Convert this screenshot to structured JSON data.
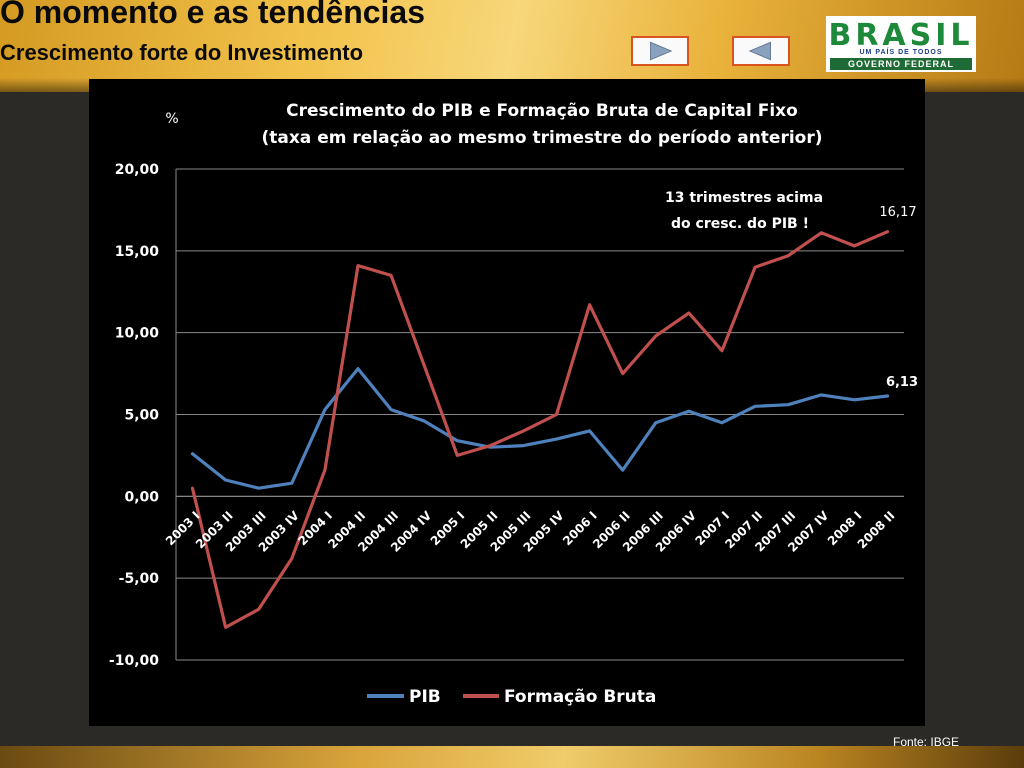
{
  "header": {
    "title": "O momento e as tendências",
    "subtitle": "Crescimento forte do Investimento"
  },
  "navigation": {
    "next_icon": "play-right-icon",
    "prev_icon": "play-left-icon"
  },
  "logo": {
    "word": "BRASIL",
    "tagline": "UM PAÍS DE TODOS",
    "government": "GOVERNO FEDERAL"
  },
  "colors": {
    "pib": "#4f81bd",
    "fbcf": "#c0504d",
    "nav_border": "#d9541e"
  },
  "chart_data": {
    "type": "line",
    "title_line1": "Crescimento do PIB e Formação Bruta de Capital Fixo",
    "title_line2": "(taxa em relação ao mesmo trimestre do período anterior)",
    "ylabel": "%",
    "ylim": [
      -10,
      20
    ],
    "yticks": [
      20,
      15,
      10,
      5,
      0,
      -5,
      -10
    ],
    "ytick_labels": [
      "20,00",
      "15,00",
      "10,00",
      "5,00",
      "0,00",
      "-5,00",
      "-10,00"
    ],
    "grid": true,
    "legend_position": "bottom",
    "categories": [
      "2003 I",
      "2003 II",
      "2003 III",
      "2003 IV",
      "2004 I",
      "2004 II",
      "2004 III",
      "2004 IV",
      "2005 I",
      "2005 II",
      "2005 III",
      "2005 IV",
      "2006 I",
      "2006 II",
      "2006 III",
      "2006 IV",
      "2007 I",
      "2007 II",
      "2007 III",
      "2007 IV",
      "2008 I",
      "2008 II"
    ],
    "series": [
      {
        "name": "PIB",
        "color": "#4f81bd",
        "values": [
          2.6,
          1.0,
          0.5,
          0.8,
          5.3,
          7.8,
          5.3,
          4.6,
          3.4,
          3.0,
          3.1,
          3.5,
          4.0,
          1.6,
          4.5,
          5.2,
          4.5,
          5.5,
          5.6,
          6.2,
          5.9,
          6.13
        ]
      },
      {
        "name": "Formação Bruta",
        "color": "#c0504d",
        "values": [
          0.5,
          -8.0,
          -6.9,
          -3.8,
          1.6,
          14.1,
          13.5,
          8.0,
          2.5,
          3.1,
          4.0,
          5.0,
          11.7,
          7.5,
          9.8,
          11.2,
          8.9,
          14.0,
          14.7,
          16.1,
          15.3,
          16.17
        ]
      }
    ],
    "annotations": {
      "fbcf_last_label": "16,17",
      "pib_last_label": "6,13",
      "note_line1": "13 trimestres acima",
      "note_line2": "do cresc. do PIB !"
    }
  },
  "footer": {
    "source": "Fonte: IBGE"
  }
}
